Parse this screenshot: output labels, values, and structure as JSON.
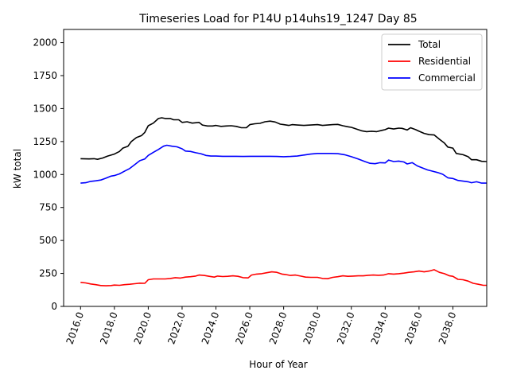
{
  "chart_data": {
    "type": "line",
    "title": "Timeseries Load for P14U p14uhs19_1247  Day 85",
    "xlabel": "Hour of Year",
    "ylabel": "kW total",
    "xlim": [
      2015.0,
      2040.0
    ],
    "ylim": [
      0,
      2100
    ],
    "xticks": [
      "2016.0",
      "2018.0",
      "2020.0",
      "2022.0",
      "2024.0",
      "2026.0",
      "2028.0",
      "2030.0",
      "2032.0",
      "2034.0",
      "2036.0",
      "2038.0"
    ],
    "xtick_values": [
      2016,
      2018,
      2020,
      2022,
      2024,
      2026,
      2028,
      2030,
      2032,
      2034,
      2036,
      2038
    ],
    "yticks": [
      "0",
      "250",
      "500",
      "750",
      "1000",
      "1250",
      "1500",
      "1750",
      "2000"
    ],
    "ytick_values": [
      0,
      250,
      500,
      750,
      1000,
      1250,
      1500,
      1750,
      2000
    ],
    "grid": false,
    "legend_position": "top-right",
    "series": [
      {
        "name": "Total",
        "color": "#000000",
        "points": [
          [
            2016.0,
            1120
          ],
          [
            2016.5,
            1118
          ],
          [
            2016.8,
            1120
          ],
          [
            2017.0,
            1115
          ],
          [
            2017.3,
            1125
          ],
          [
            2017.6,
            1140
          ],
          [
            2018.0,
            1155
          ],
          [
            2018.3,
            1175
          ],
          [
            2018.5,
            1200
          ],
          [
            2018.8,
            1215
          ],
          [
            2019.0,
            1250
          ],
          [
            2019.3,
            1280
          ],
          [
            2019.6,
            1295
          ],
          [
            2019.8,
            1320
          ],
          [
            2020.0,
            1370
          ],
          [
            2020.3,
            1390
          ],
          [
            2020.6,
            1425
          ],
          [
            2020.8,
            1430
          ],
          [
            2021.0,
            1425
          ],
          [
            2021.3,
            1425
          ],
          [
            2021.5,
            1415
          ],
          [
            2021.8,
            1415
          ],
          [
            2022.0,
            1395
          ],
          [
            2022.3,
            1400
          ],
          [
            2022.6,
            1390
          ],
          [
            2023.0,
            1395
          ],
          [
            2023.2,
            1375
          ],
          [
            2023.5,
            1368
          ],
          [
            2023.8,
            1368
          ],
          [
            2024.0,
            1372
          ],
          [
            2024.3,
            1365
          ],
          [
            2024.6,
            1368
          ],
          [
            2024.9,
            1370
          ],
          [
            2025.2,
            1365
          ],
          [
            2025.5,
            1355
          ],
          [
            2025.8,
            1355
          ],
          [
            2026.0,
            1378
          ],
          [
            2026.3,
            1385
          ],
          [
            2026.6,
            1388
          ],
          [
            2026.9,
            1400
          ],
          [
            2027.2,
            1405
          ],
          [
            2027.5,
            1398
          ],
          [
            2027.8,
            1382
          ],
          [
            2028.0,
            1378
          ],
          [
            2028.3,
            1372
          ],
          [
            2028.5,
            1378
          ],
          [
            2028.8,
            1375
          ],
          [
            2029.2,
            1372
          ],
          [
            2029.6,
            1375
          ],
          [
            2030.0,
            1378
          ],
          [
            2030.3,
            1372
          ],
          [
            2030.6,
            1375
          ],
          [
            2030.9,
            1378
          ],
          [
            2031.2,
            1380
          ],
          [
            2031.5,
            1370
          ],
          [
            2031.8,
            1362
          ],
          [
            2032.0,
            1358
          ],
          [
            2032.3,
            1345
          ],
          [
            2032.6,
            1332
          ],
          [
            2032.9,
            1325
          ],
          [
            2033.2,
            1328
          ],
          [
            2033.5,
            1325
          ],
          [
            2033.8,
            1335
          ],
          [
            2034.0,
            1340
          ],
          [
            2034.2,
            1352
          ],
          [
            2034.5,
            1345
          ],
          [
            2034.8,
            1352
          ],
          [
            2035.0,
            1350
          ],
          [
            2035.3,
            1338
          ],
          [
            2035.5,
            1355
          ],
          [
            2035.8,
            1340
          ],
          [
            2036.0,
            1328
          ],
          [
            2036.3,
            1312
          ],
          [
            2036.6,
            1302
          ],
          [
            2036.9,
            1300
          ],
          [
            2037.2,
            1268
          ],
          [
            2037.5,
            1238
          ],
          [
            2037.7,
            1208
          ],
          [
            2038.0,
            1200
          ],
          [
            2038.2,
            1160
          ],
          [
            2038.6,
            1150
          ],
          [
            2038.9,
            1135
          ],
          [
            2039.1,
            1112
          ],
          [
            2039.4,
            1112
          ],
          [
            2039.7,
            1100
          ],
          [
            2040.0,
            1098
          ]
        ]
      },
      {
        "name": "Residential",
        "color": "#ff0000",
        "points": [
          [
            2016.0,
            182
          ],
          [
            2016.3,
            178
          ],
          [
            2016.6,
            170
          ],
          [
            2016.9,
            165
          ],
          [
            2017.2,
            158
          ],
          [
            2017.5,
            156
          ],
          [
            2017.8,
            158
          ],
          [
            2018.0,
            162
          ],
          [
            2018.3,
            160
          ],
          [
            2018.6,
            165
          ],
          [
            2018.9,
            168
          ],
          [
            2019.2,
            172
          ],
          [
            2019.5,
            176
          ],
          [
            2019.8,
            175
          ],
          [
            2020.0,
            202
          ],
          [
            2020.3,
            208
          ],
          [
            2020.6,
            208
          ],
          [
            2021.0,
            208
          ],
          [
            2021.3,
            212
          ],
          [
            2021.6,
            218
          ],
          [
            2021.9,
            215
          ],
          [
            2022.2,
            222
          ],
          [
            2022.5,
            225
          ],
          [
            2022.8,
            230
          ],
          [
            2023.0,
            238
          ],
          [
            2023.3,
            235
          ],
          [
            2023.6,
            228
          ],
          [
            2023.9,
            222
          ],
          [
            2024.1,
            230
          ],
          [
            2024.4,
            226
          ],
          [
            2024.7,
            228
          ],
          [
            2025.0,
            232
          ],
          [
            2025.3,
            228
          ],
          [
            2025.6,
            218
          ],
          [
            2025.9,
            216
          ],
          [
            2026.1,
            238
          ],
          [
            2026.4,
            245
          ],
          [
            2026.7,
            248
          ],
          [
            2027.0,
            255
          ],
          [
            2027.3,
            262
          ],
          [
            2027.6,
            258
          ],
          [
            2027.9,
            245
          ],
          [
            2028.1,
            242
          ],
          [
            2028.4,
            235
          ],
          [
            2028.7,
            238
          ],
          [
            2029.0,
            230
          ],
          [
            2029.3,
            222
          ],
          [
            2029.6,
            220
          ],
          [
            2030.0,
            220
          ],
          [
            2030.3,
            212
          ],
          [
            2030.6,
            210
          ],
          [
            2030.9,
            220
          ],
          [
            2031.2,
            225
          ],
          [
            2031.5,
            232
          ],
          [
            2031.8,
            228
          ],
          [
            2032.1,
            230
          ],
          [
            2032.4,
            232
          ],
          [
            2032.7,
            232
          ],
          [
            2033.0,
            236
          ],
          [
            2033.3,
            238
          ],
          [
            2033.6,
            236
          ],
          [
            2033.9,
            238
          ],
          [
            2034.2,
            248
          ],
          [
            2034.5,
            245
          ],
          [
            2034.8,
            248
          ],
          [
            2035.1,
            252
          ],
          [
            2035.4,
            258
          ],
          [
            2035.7,
            262
          ],
          [
            2036.0,
            268
          ],
          [
            2036.3,
            262
          ],
          [
            2036.6,
            268
          ],
          [
            2036.9,
            278
          ],
          [
            2037.2,
            258
          ],
          [
            2037.5,
            248
          ],
          [
            2037.8,
            232
          ],
          [
            2038.0,
            228
          ],
          [
            2038.3,
            205
          ],
          [
            2038.6,
            202
          ],
          [
            2038.9,
            192
          ],
          [
            2039.2,
            175
          ],
          [
            2039.5,
            168
          ],
          [
            2039.8,
            160
          ],
          [
            2040.0,
            160
          ]
        ]
      },
      {
        "name": "Commercial",
        "color": "#0000ff",
        "points": [
          [
            2016.0,
            935
          ],
          [
            2016.3,
            938
          ],
          [
            2016.6,
            948
          ],
          [
            2016.9,
            952
          ],
          [
            2017.2,
            958
          ],
          [
            2017.5,
            972
          ],
          [
            2017.8,
            988
          ],
          [
            2018.0,
            992
          ],
          [
            2018.3,
            1005
          ],
          [
            2018.6,
            1025
          ],
          [
            2018.9,
            1045
          ],
          [
            2019.2,
            1075
          ],
          [
            2019.5,
            1105
          ],
          [
            2019.8,
            1118
          ],
          [
            2020.0,
            1145
          ],
          [
            2020.3,
            1168
          ],
          [
            2020.6,
            1190
          ],
          [
            2020.9,
            1215
          ],
          [
            2021.1,
            1222
          ],
          [
            2021.4,
            1215
          ],
          [
            2021.7,
            1210
          ],
          [
            2022.0,
            1195
          ],
          [
            2022.2,
            1178
          ],
          [
            2022.5,
            1175
          ],
          [
            2022.8,
            1165
          ],
          [
            2023.1,
            1158
          ],
          [
            2023.4,
            1145
          ],
          [
            2023.7,
            1140
          ],
          [
            2024.0,
            1140
          ],
          [
            2024.4,
            1138
          ],
          [
            2024.8,
            1138
          ],
          [
            2025.2,
            1138
          ],
          [
            2025.6,
            1137
          ],
          [
            2026.0,
            1138
          ],
          [
            2026.4,
            1138
          ],
          [
            2026.8,
            1138
          ],
          [
            2027.2,
            1138
          ],
          [
            2027.6,
            1137
          ],
          [
            2028.0,
            1135
          ],
          [
            2028.4,
            1137
          ],
          [
            2028.8,
            1140
          ],
          [
            2029.2,
            1148
          ],
          [
            2029.6,
            1155
          ],
          [
            2030.0,
            1160
          ],
          [
            2030.4,
            1160
          ],
          [
            2030.8,
            1160
          ],
          [
            2031.2,
            1158
          ],
          [
            2031.6,
            1150
          ],
          [
            2032.0,
            1135
          ],
          [
            2032.4,
            1118
          ],
          [
            2032.8,
            1098
          ],
          [
            2033.1,
            1085
          ],
          [
            2033.4,
            1082
          ],
          [
            2033.7,
            1090
          ],
          [
            2034.0,
            1088
          ],
          [
            2034.2,
            1110
          ],
          [
            2034.5,
            1098
          ],
          [
            2034.8,
            1102
          ],
          [
            2035.1,
            1095
          ],
          [
            2035.3,
            1080
          ],
          [
            2035.6,
            1090
          ],
          [
            2035.9,
            1065
          ],
          [
            2036.2,
            1050
          ],
          [
            2036.5,
            1035
          ],
          [
            2036.8,
            1025
          ],
          [
            2037.1,
            1015
          ],
          [
            2037.4,
            1002
          ],
          [
            2037.7,
            975
          ],
          [
            2038.0,
            970
          ],
          [
            2038.3,
            955
          ],
          [
            2038.6,
            950
          ],
          [
            2038.9,
            945
          ],
          [
            2039.1,
            938
          ],
          [
            2039.4,
            945
          ],
          [
            2039.7,
            935
          ],
          [
            2040.0,
            935
          ]
        ]
      }
    ]
  }
}
